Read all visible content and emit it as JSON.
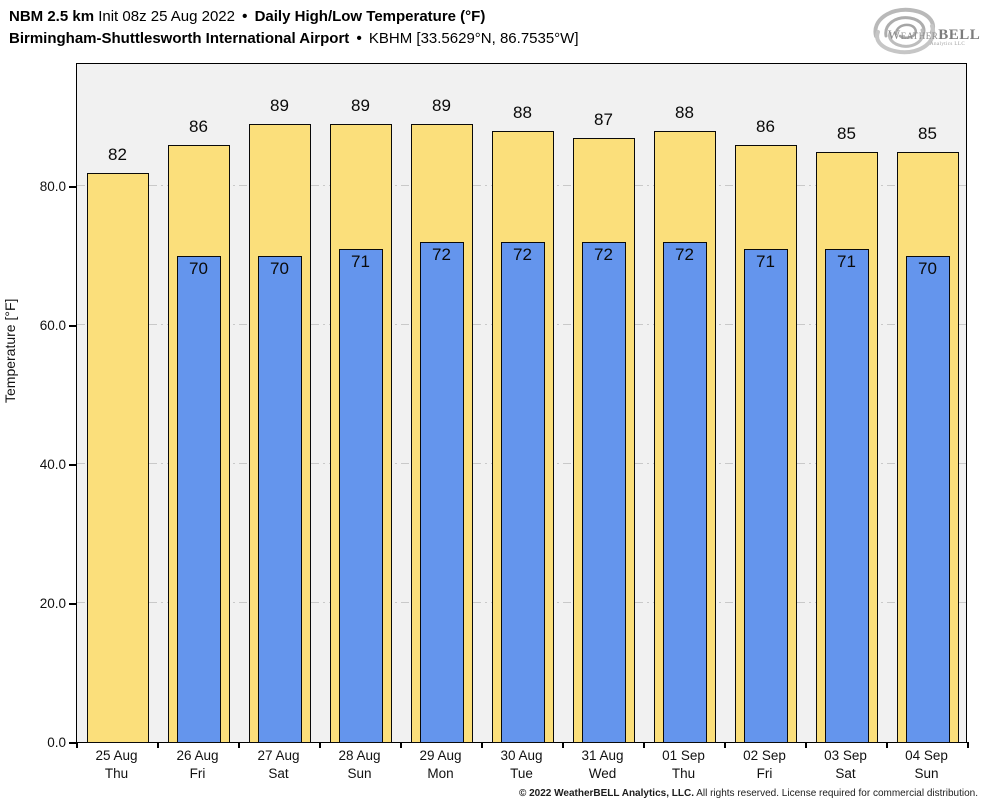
{
  "header": {
    "model": "NBM 2.5 km",
    "init": "Init 08z 25 Aug 2022",
    "bullet": "•",
    "product": "Daily High/Low Temperature (°F)",
    "station": "Birmingham-Shuttlesworth International Airport",
    "station_id": "KBHM [33.5629°N, 86.7535°W]"
  },
  "logo": {
    "weather": "Weather",
    "bell": "BELL",
    "sub": "Analytics LLC"
  },
  "chart_data": {
    "type": "bar",
    "title": "Daily High/Low Temperature (°F)",
    "xlabel": "",
    "ylabel": "Temperature [°F]",
    "ylim": [
      0,
      97.8
    ],
    "yticks": [
      {
        "value": 0,
        "label": "0.0"
      },
      {
        "value": 20,
        "label": "20.0"
      },
      {
        "value": 40,
        "label": "40.0"
      },
      {
        "value": 60,
        "label": "60.0"
      },
      {
        "value": 80,
        "label": "80.0"
      }
    ],
    "grid": "horizontal dash-dot",
    "legend": "none",
    "plot_background": "#f1f1f1",
    "categories": [
      {
        "date": "25 Aug",
        "day": "Thu"
      },
      {
        "date": "26 Aug",
        "day": "Fri"
      },
      {
        "date": "27 Aug",
        "day": "Sat"
      },
      {
        "date": "28 Aug",
        "day": "Sun"
      },
      {
        "date": "29 Aug",
        "day": "Mon"
      },
      {
        "date": "30 Aug",
        "day": "Tue"
      },
      {
        "date": "31 Aug",
        "day": "Wed"
      },
      {
        "date": "01 Sep",
        "day": "Thu"
      },
      {
        "date": "02 Sep",
        "day": "Fri"
      },
      {
        "date": "03 Sep",
        "day": "Sat"
      },
      {
        "date": "04 Sep",
        "day": "Sun"
      }
    ],
    "series": [
      {
        "name": "High",
        "color": "#FBDF7B",
        "values": [
          82,
          86,
          89,
          89,
          89,
          88,
          87,
          88,
          86,
          85,
          85
        ]
      },
      {
        "name": "Low",
        "color": "#6495ED",
        "values": [
          null,
          70,
          70,
          71,
          72,
          72,
          72,
          72,
          71,
          71,
          70
        ]
      }
    ]
  },
  "footer": {
    "copyright": "© 2022 WeatherBELL Analytics, LLC.",
    "rights": "All rights reserved. License required for commercial distribution."
  }
}
